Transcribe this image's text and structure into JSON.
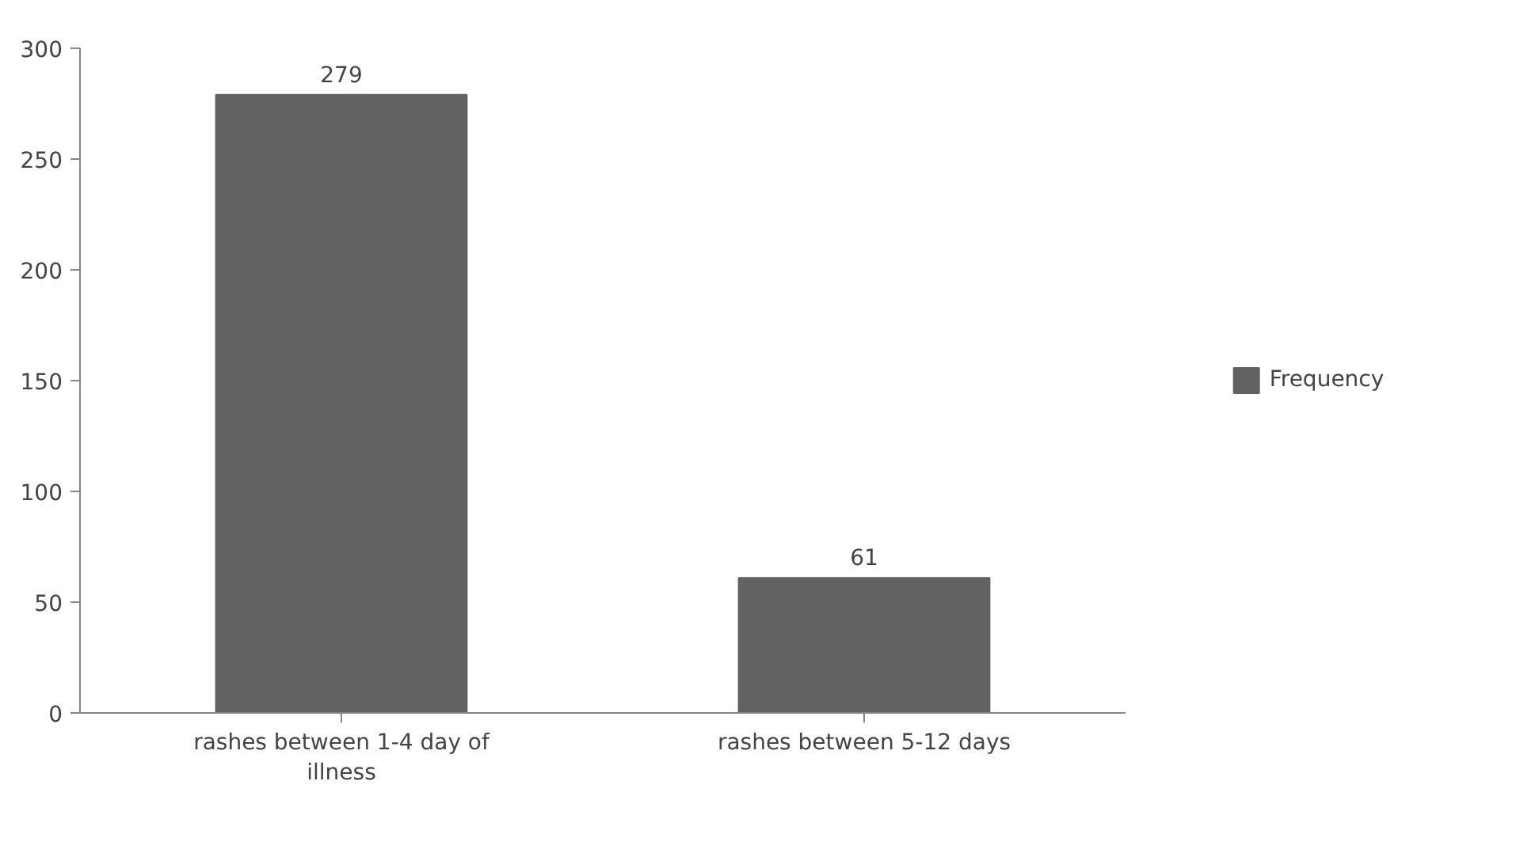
{
  "chart_data": {
    "type": "bar",
    "categories": [
      "rashes between 1-4 day of illness",
      "rashes between 5-12 days"
    ],
    "series": [
      {
        "name": "Frequency",
        "color": "#626262",
        "values": [
          279,
          61
        ]
      }
    ],
    "ylim": [
      0,
      300
    ],
    "yticks": [
      0,
      50,
      100,
      150,
      200,
      250,
      300
    ],
    "grid": false,
    "legend": "right",
    "data_labels": true
  }
}
